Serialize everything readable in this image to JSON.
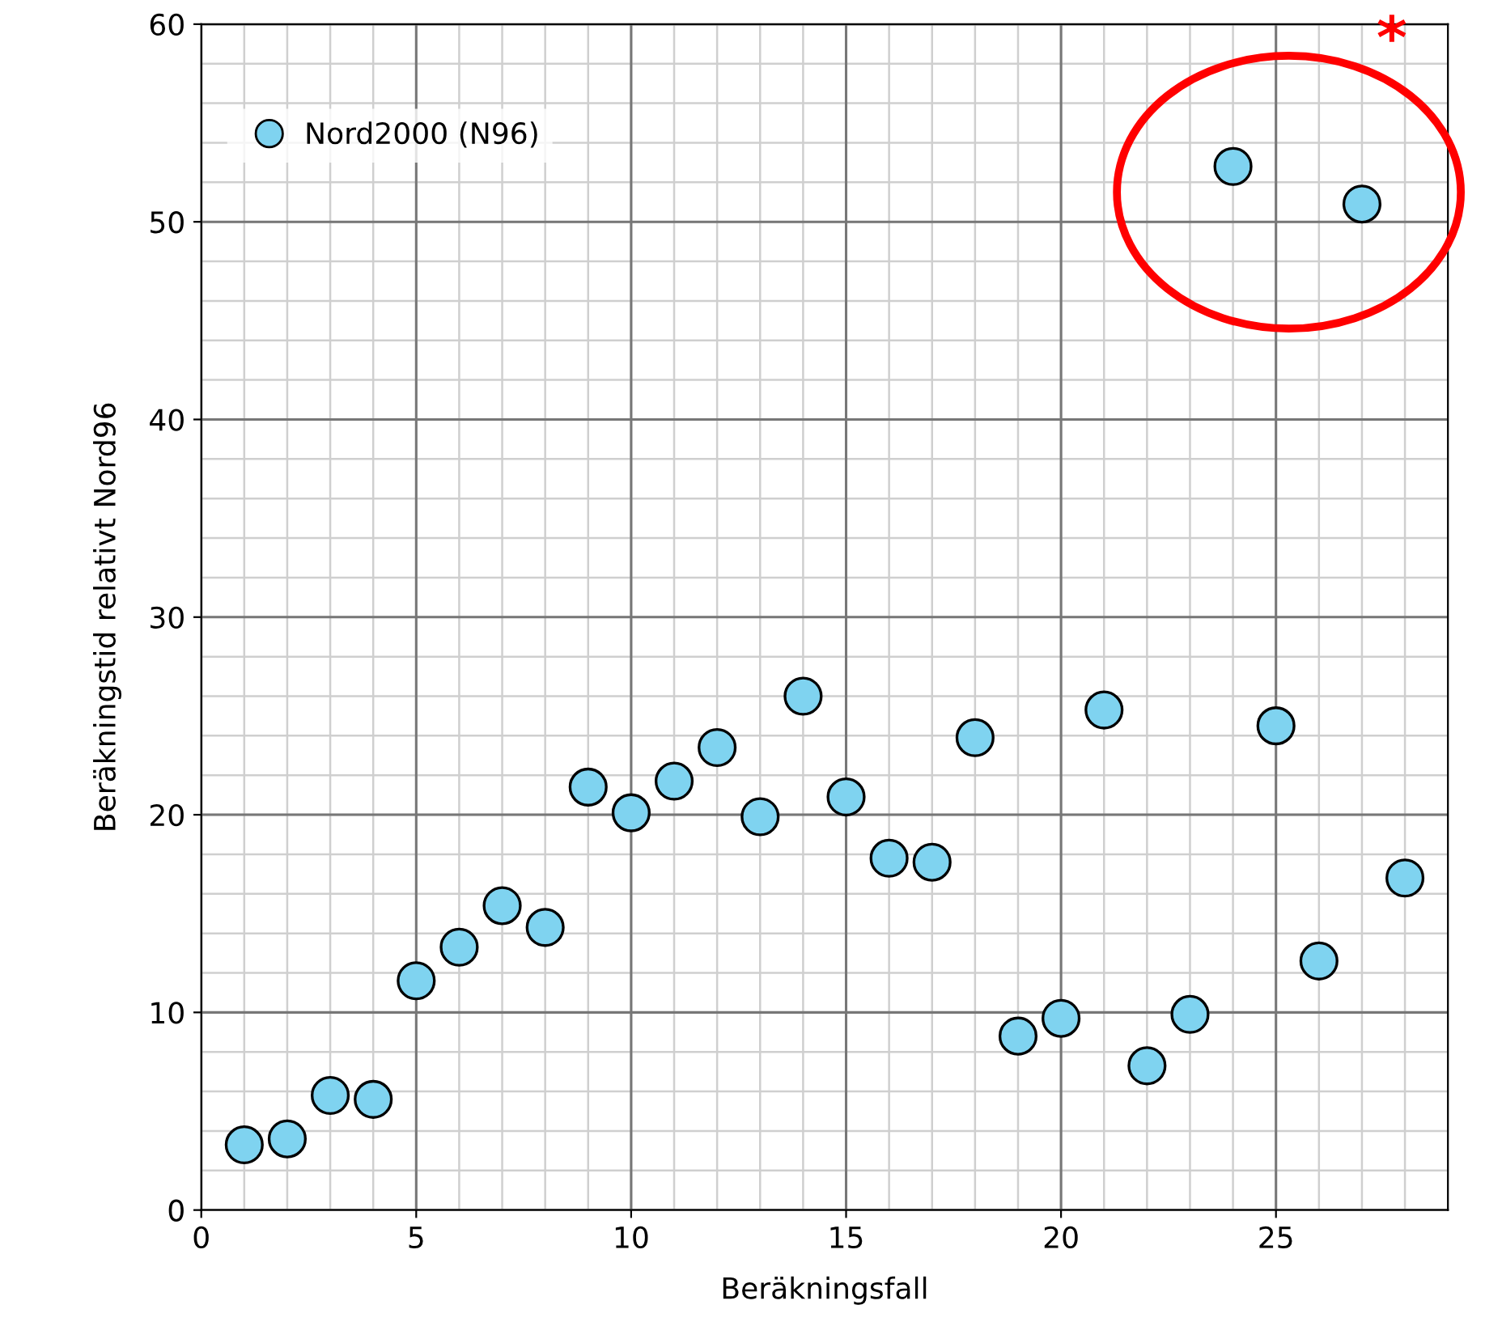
{
  "chart_data": {
    "type": "scatter",
    "xlabel": "Beräkningsfall",
    "ylabel": "Beräkningstid relativt Nord96",
    "x": [
      1,
      2,
      3,
      4,
      5,
      6,
      7,
      8,
      9,
      10,
      11,
      12,
      13,
      14,
      15,
      16,
      17,
      18,
      19,
      20,
      21,
      22,
      23,
      24,
      25,
      26,
      27,
      28
    ],
    "series": [
      {
        "name": "Nord2000 (N96)",
        "color": "#7fd3f0",
        "values": [
          3.3,
          3.6,
          5.8,
          5.6,
          11.6,
          13.3,
          15.4,
          14.3,
          21.4,
          20.1,
          21.7,
          23.4,
          19.9,
          26.0,
          20.9,
          17.8,
          17.6,
          23.9,
          8.8,
          9.7,
          25.3,
          7.3,
          9.9,
          52.8,
          24.5,
          12.6,
          50.9,
          16.8
        ]
      }
    ],
    "xlim": [
      0,
      29
    ],
    "xticks": [
      0,
      5,
      10,
      15,
      20,
      25
    ],
    "ylim": [
      0,
      60
    ],
    "yticks": [
      0,
      10,
      20,
      30,
      40,
      50,
      60
    ],
    "grid": true,
    "legend": "top left",
    "marker": "circle",
    "annotations": [
      "*"
    ]
  }
}
